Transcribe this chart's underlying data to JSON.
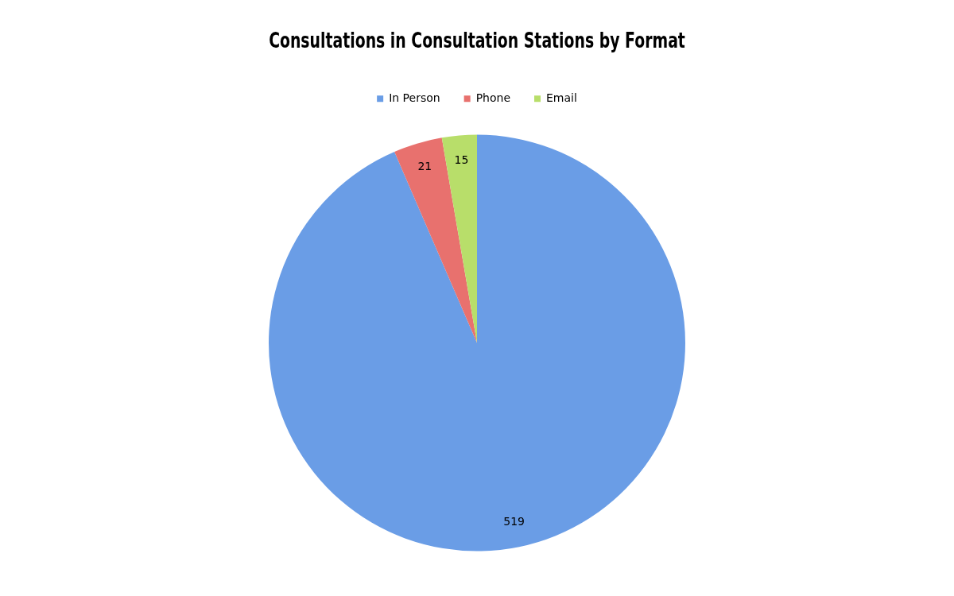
{
  "chart_data": {
    "type": "pie",
    "title": "Consultations in Consultation Stations by Format",
    "categories": [
      "In Person",
      "Phone",
      "Email"
    ],
    "values": [
      519,
      21,
      15
    ],
    "colors": [
      "#6a9de6",
      "#e8716e",
      "#b8de6a"
    ],
    "legend": "top",
    "data_labels": true
  }
}
